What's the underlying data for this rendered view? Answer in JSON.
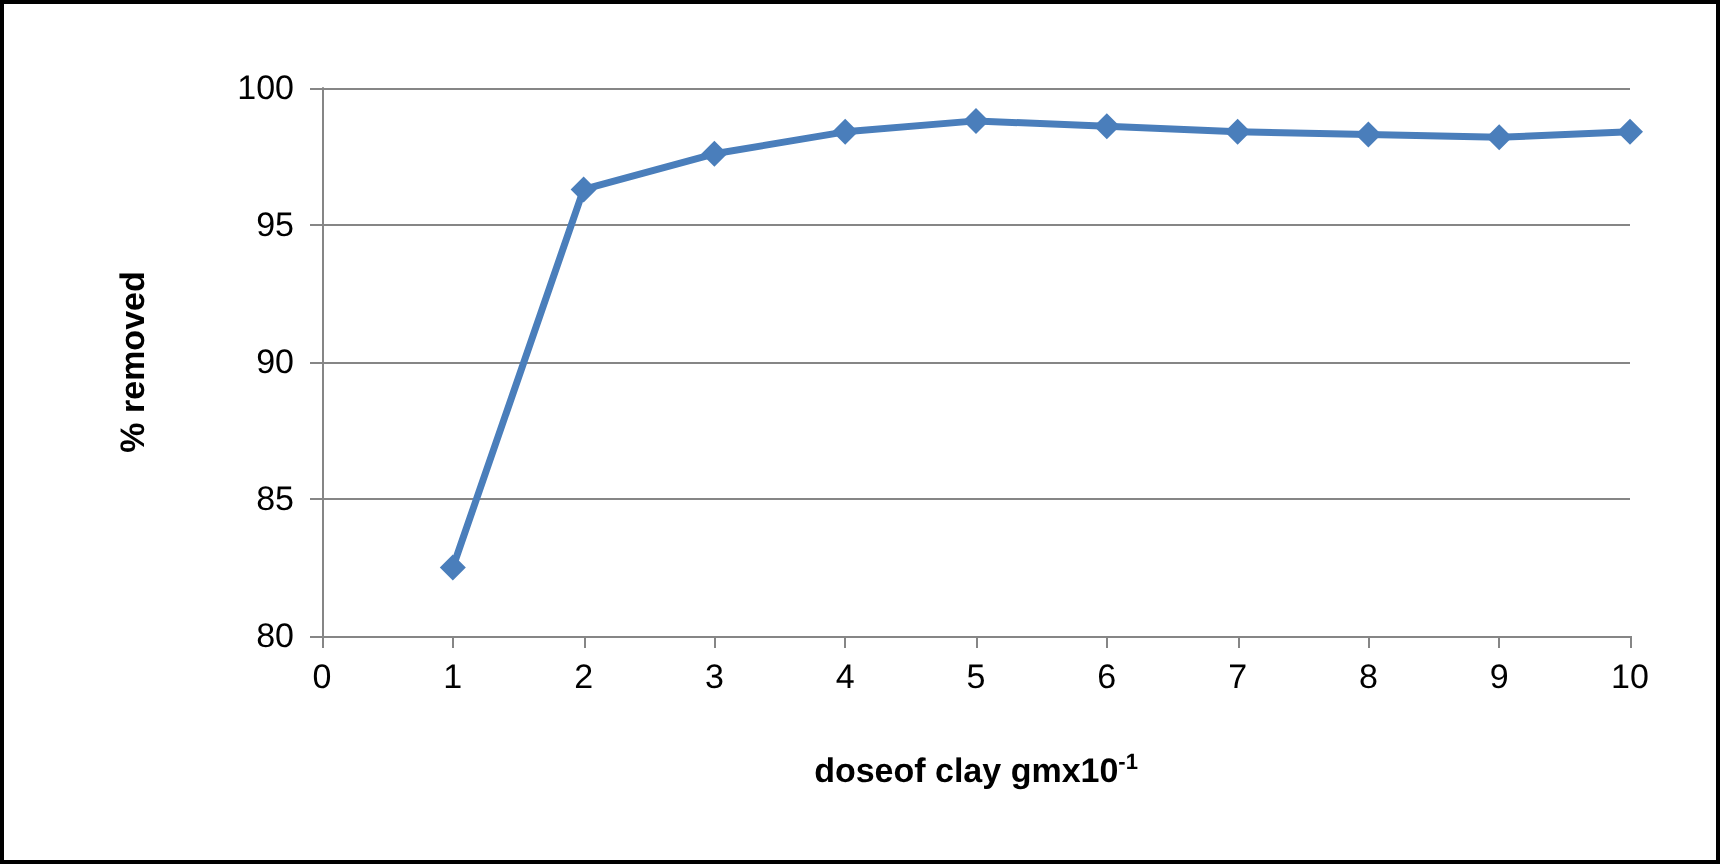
{
  "chart_data": {
    "type": "line",
    "xlabel": "doseof clay gmx10$^{-1}$",
    "ylabel": "% removed",
    "x": [
      1,
      2,
      3,
      4,
      5,
      6,
      7,
      8,
      9,
      10
    ],
    "series": [
      {
        "color": "#4a7ebb",
        "values": [
          82.5,
          96.3,
          97.6,
          98.4,
          98.8,
          98.6,
          98.4,
          98.3,
          98.2,
          98.4
        ]
      }
    ],
    "xlim": [
      0,
      10
    ],
    "xticks": [
      0,
      1,
      2,
      3,
      4,
      5,
      6,
      7,
      8,
      9,
      10
    ],
    "ylim": [
      80,
      100
    ],
    "yticks": [
      80,
      85,
      90,
      95,
      100
    ],
    "grid": "y",
    "marker": "diamond",
    "line_style": "solid"
  }
}
